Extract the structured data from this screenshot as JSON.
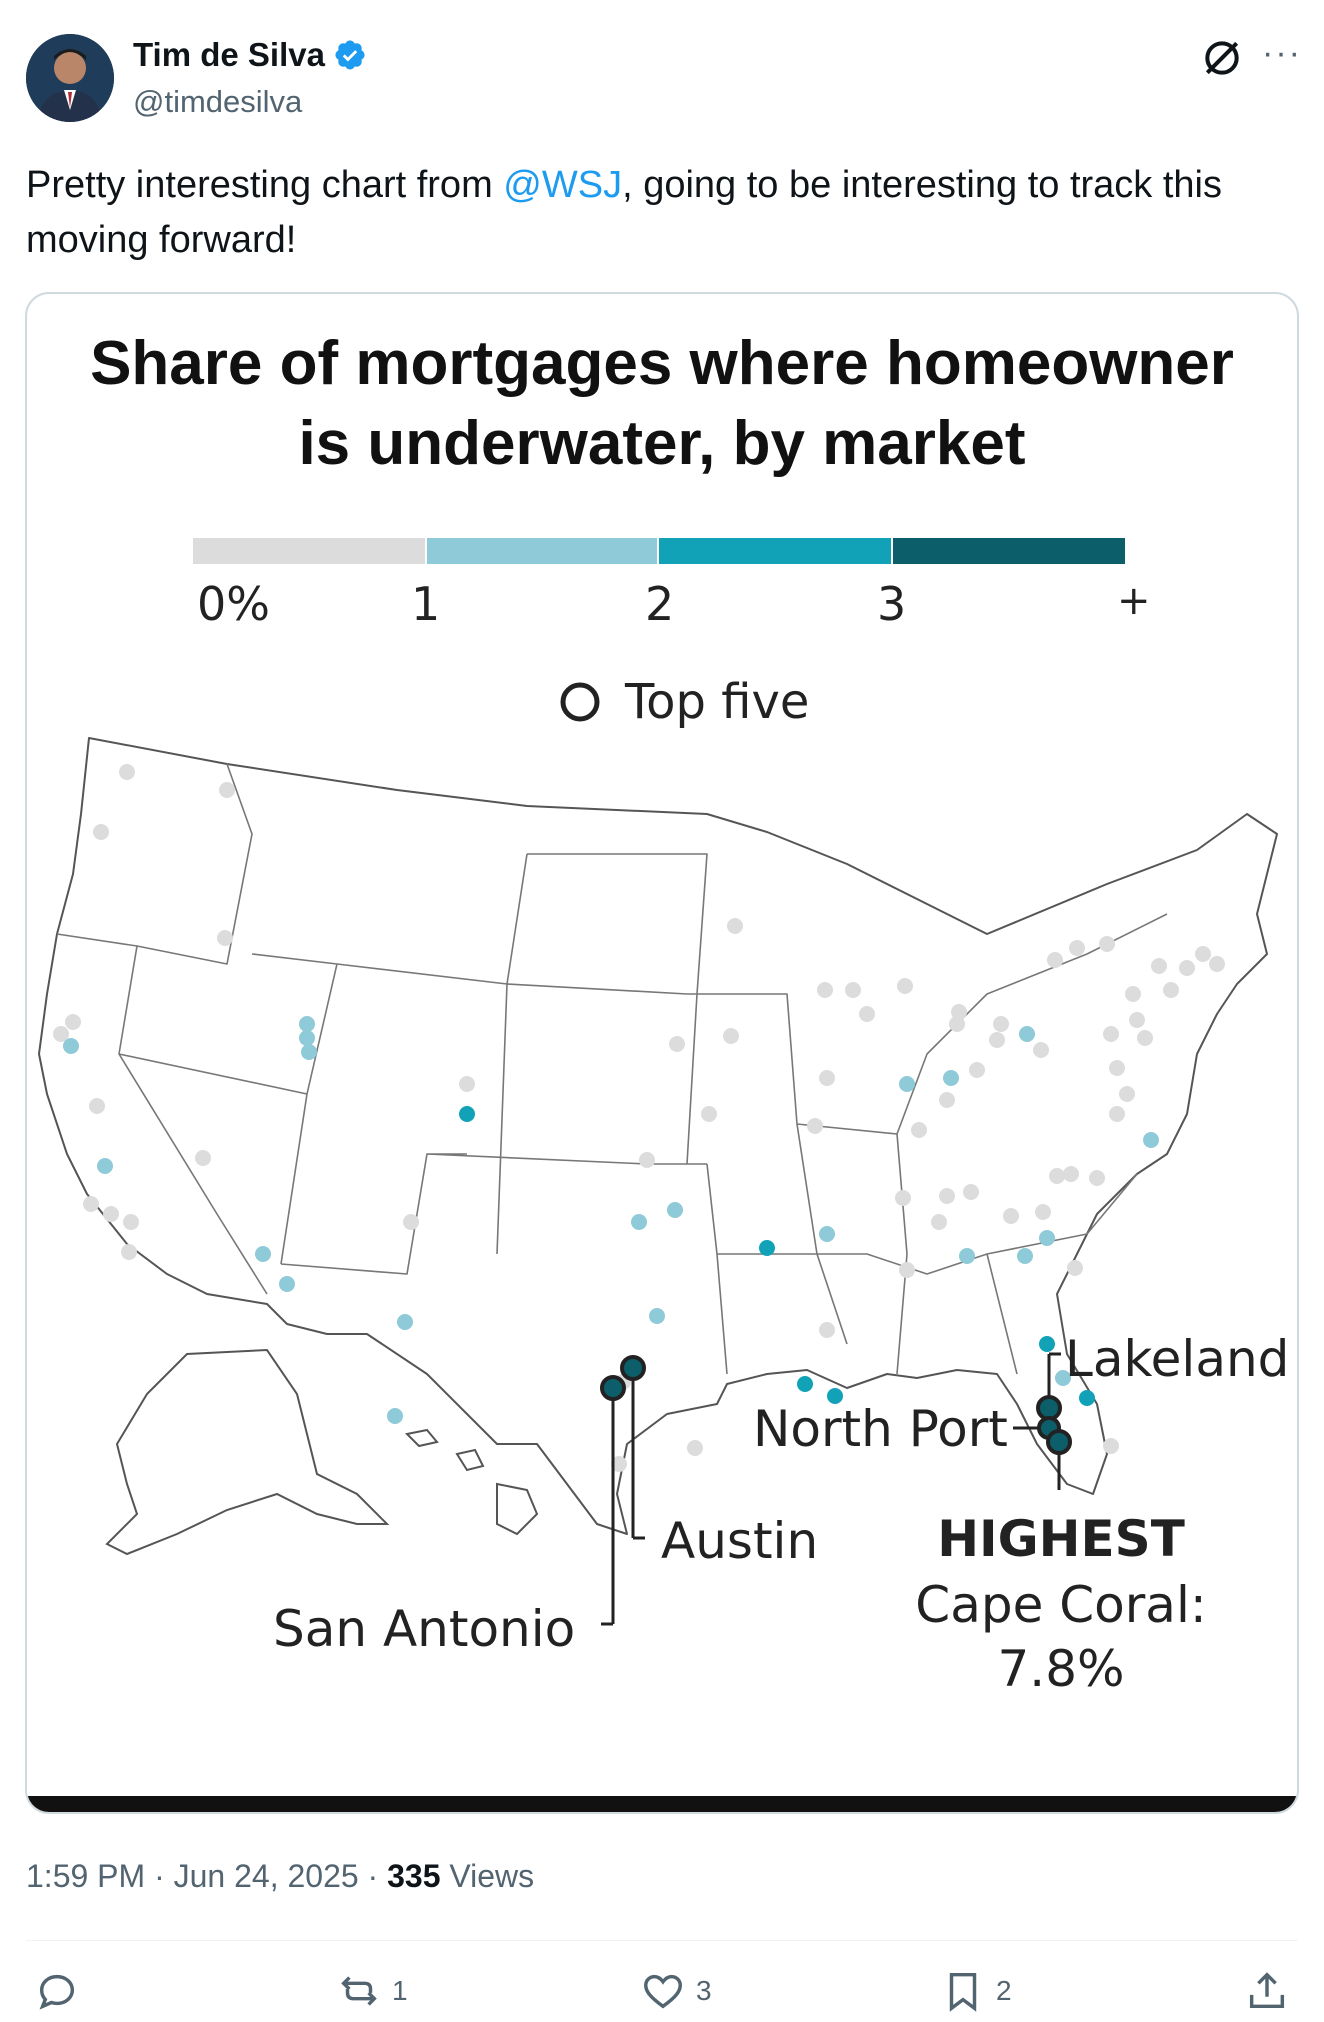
{
  "author": {
    "name": "Tim de Silva",
    "handle": "@timdesilva",
    "verified": true
  },
  "tweet": {
    "text_before": "Pretty interesting chart from ",
    "mention": "@WSJ",
    "text_after": ", going to be interesting to track this moving forward!"
  },
  "chart": {
    "title_line1": "Share of mortgages where homeowner",
    "title_line2": "is underwater, by market",
    "legend": {
      "bins": [
        "0%",
        "1",
        "2",
        "3",
        "+"
      ],
      "colors": [
        "#dcdcdc",
        "#8fcad8",
        "#12a2b8",
        "#0c5e6a"
      ],
      "top_five_label": "Top five"
    },
    "labels": {
      "lakeland": "Lakeland",
      "north_port": "North Port",
      "austin": "Austin",
      "san_antonio": "San Antonio",
      "highest": "HIGHEST",
      "cape_coral": "Cape Coral:",
      "cape_coral_value": "7.8%"
    }
  },
  "footer": {
    "time": "1:59 PM",
    "date": "Jun 24, 2025",
    "views_count": "335",
    "views_label": "Views"
  },
  "actions": {
    "replies": "",
    "reposts": "1",
    "likes": "3",
    "bookmarks": "2"
  }
}
